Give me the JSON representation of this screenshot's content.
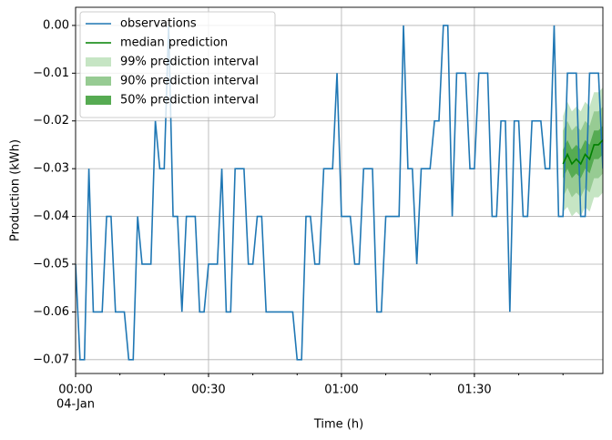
{
  "chart_data": {
    "type": "line",
    "xlabel": "Time (h)",
    "ylabel": "Production (kWh)",
    "x": [
      "00:00",
      "00:01",
      "00:02",
      "00:03",
      "00:04",
      "00:05",
      "00:06",
      "00:07",
      "00:08",
      "00:09",
      "00:10",
      "00:11",
      "00:12",
      "00:13",
      "00:14",
      "00:15",
      "00:16",
      "00:17",
      "00:18",
      "00:19",
      "00:20",
      "00:21",
      "00:22",
      "00:23",
      "00:24",
      "00:25",
      "00:26",
      "00:27",
      "00:28",
      "00:29",
      "00:30",
      "00:31",
      "00:32",
      "00:33",
      "00:34",
      "00:35",
      "00:36",
      "00:37",
      "00:38",
      "00:39",
      "00:40",
      "00:41",
      "00:42",
      "00:43",
      "00:44",
      "00:45",
      "00:46",
      "00:47",
      "00:48",
      "00:49",
      "00:50",
      "00:51",
      "00:52",
      "00:53",
      "00:54",
      "00:55",
      "00:56",
      "00:57",
      "00:58",
      "00:59",
      "01:00",
      "01:01",
      "01:02",
      "01:03",
      "01:04",
      "01:05",
      "01:06",
      "01:07",
      "01:08",
      "01:09",
      "01:10",
      "01:11",
      "01:12",
      "01:13",
      "01:14",
      "01:15",
      "01:16",
      "01:17",
      "01:18",
      "01:19",
      "01:20",
      "01:21",
      "01:22",
      "01:23",
      "01:24",
      "01:25",
      "01:26",
      "01:27",
      "01:28",
      "01:29",
      "01:30",
      "01:31",
      "01:32",
      "01:33",
      "01:34",
      "01:35",
      "01:36",
      "01:37",
      "01:38",
      "01:39",
      "01:40",
      "01:41",
      "01:42",
      "01:43",
      "01:44",
      "01:45",
      "01:46",
      "01:47",
      "01:48",
      "01:49",
      "01:50",
      "01:51",
      "01:52",
      "01:53",
      "01:54",
      "01:55",
      "01:56",
      "01:57",
      "01:58",
      "01:59"
    ],
    "series": [
      {
        "name": "observations",
        "color": "#1f77b4",
        "values": [
          -0.05,
          -0.07,
          -0.07,
          -0.03,
          -0.06,
          -0.06,
          -0.06,
          -0.04,
          -0.04,
          -0.06,
          -0.06,
          -0.06,
          -0.07,
          -0.07,
          -0.04,
          -0.05,
          -0.05,
          -0.05,
          -0.02,
          -0.03,
          -0.03,
          0.0,
          -0.04,
          -0.04,
          -0.06,
          -0.04,
          -0.04,
          -0.04,
          -0.06,
          -0.06,
          -0.05,
          -0.05,
          -0.05,
          -0.03,
          -0.06,
          -0.06,
          -0.03,
          -0.03,
          -0.03,
          -0.05,
          -0.05,
          -0.04,
          -0.04,
          -0.06,
          -0.06,
          -0.06,
          -0.06,
          -0.06,
          -0.06,
          -0.06,
          -0.07,
          -0.07,
          -0.04,
          -0.04,
          -0.05,
          -0.05,
          -0.03,
          -0.03,
          -0.03,
          -0.01,
          -0.04,
          -0.04,
          -0.04,
          -0.05,
          -0.05,
          -0.03,
          -0.03,
          -0.03,
          -0.06,
          -0.06,
          -0.04,
          -0.04,
          -0.04,
          -0.04,
          0.0,
          -0.03,
          -0.03,
          -0.05,
          -0.03,
          -0.03,
          -0.03,
          -0.02,
          -0.02,
          0.0,
          0.0,
          -0.04,
          -0.01,
          -0.01,
          -0.01,
          -0.03,
          -0.03,
          -0.01,
          -0.01,
          -0.01,
          -0.04,
          -0.04,
          -0.02,
          -0.02,
          -0.06,
          -0.02,
          -0.02,
          -0.04,
          -0.04,
          -0.02,
          -0.02,
          -0.02,
          -0.03,
          -0.03,
          0.0,
          -0.04,
          -0.04,
          -0.01,
          -0.01,
          -0.01,
          -0.04,
          -0.04,
          -0.01,
          -0.01,
          -0.01,
          -0.03
        ]
      },
      {
        "name": "median prediction",
        "color": "#008000",
        "x": [
          "01:50",
          "01:51",
          "01:52",
          "01:53",
          "01:54",
          "01:55",
          "01:56",
          "01:57",
          "01:58",
          "01:59"
        ],
        "values": [
          -0.029,
          -0.027,
          -0.029,
          -0.028,
          -0.029,
          -0.027,
          -0.028,
          -0.025,
          -0.025,
          -0.024
        ]
      }
    ],
    "intervals": [
      {
        "name": "99% prediction interval",
        "color": "#c6e5c4",
        "x": [
          "01:50",
          "01:51",
          "01:52",
          "01:53",
          "01:54",
          "01:55",
          "01:56",
          "01:57",
          "01:58",
          "01:59"
        ],
        "lower": [
          -0.039,
          -0.038,
          -0.04,
          -0.039,
          -0.04,
          -0.038,
          -0.039,
          -0.036,
          -0.036,
          -0.035
        ],
        "upper": [
          -0.019,
          -0.016,
          -0.018,
          -0.017,
          -0.018,
          -0.016,
          -0.017,
          -0.014,
          -0.014,
          -0.013
        ]
      },
      {
        "name": "90% prediction interval",
        "color": "#97cb93",
        "x": [
          "01:50",
          "01:51",
          "01:52",
          "01:53",
          "01:54",
          "01:55",
          "01:56",
          "01:57",
          "01:58",
          "01:59"
        ],
        "lower": [
          -0.036,
          -0.034,
          -0.036,
          -0.035,
          -0.036,
          -0.034,
          -0.035,
          -0.032,
          -0.032,
          -0.031
        ],
        "upper": [
          -0.022,
          -0.02,
          -0.022,
          -0.021,
          -0.022,
          -0.02,
          -0.021,
          -0.018,
          -0.018,
          -0.017
        ]
      },
      {
        "name": "50% prediction interval",
        "color": "#56ab52",
        "x": [
          "01:50",
          "01:51",
          "01:52",
          "01:53",
          "01:54",
          "01:55",
          "01:56",
          "01:57",
          "01:58",
          "01:59"
        ],
        "lower": [
          -0.032,
          -0.03,
          -0.032,
          -0.031,
          -0.032,
          -0.03,
          -0.031,
          -0.028,
          -0.028,
          -0.027
        ],
        "upper": [
          -0.026,
          -0.024,
          -0.026,
          -0.025,
          -0.026,
          -0.024,
          -0.025,
          -0.022,
          -0.022,
          -0.021
        ]
      }
    ],
    "xlim": [
      "00:00",
      "01:59"
    ],
    "xticks": [
      "00:00",
      "00:30",
      "01:00",
      "01:30"
    ],
    "xtick_date": "04-Jan",
    "ylim": [
      -0.0729,
      0.0038
    ],
    "yticks": [
      {
        "value": 0,
        "label": "0.00"
      },
      {
        "value": -0.01,
        "label": "−0.01"
      },
      {
        "value": -0.02,
        "label": "−0.02"
      },
      {
        "value": -0.03,
        "label": "−0.03"
      },
      {
        "value": -0.04,
        "label": "−0.04"
      },
      {
        "value": -0.05,
        "label": "−0.05"
      },
      {
        "value": -0.06,
        "label": "−0.06"
      },
      {
        "value": -0.07,
        "label": "−0.07"
      }
    ],
    "grid": true,
    "legend": "upper-left"
  }
}
